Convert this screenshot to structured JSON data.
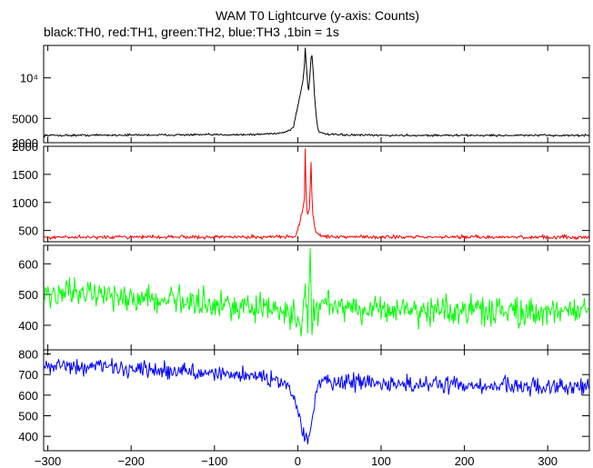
{
  "chart_data": {
    "type": "line",
    "title": "WAM T0 Lightcurve (y-axis: Counts)",
    "subtitle": "black:TH0, red:TH1, green:TH2, blue:TH3 ,1bin = 1s",
    "xlabel": "",
    "ylabel": "",
    "xlim": [
      -305,
      350
    ],
    "x_ticks": [
      -300,
      -200,
      -100,
      0,
      100,
      200,
      300
    ],
    "x_tick_labels": [
      "−300",
      "−200",
      "−100",
      "0",
      "100",
      "200",
      "300"
    ],
    "grid": false,
    "legend": "none",
    "panels": [
      {
        "name": "TH0",
        "color": "#000000",
        "ylim": [
          2000,
          14000
        ],
        "y_ticks": [
          2000,
          5000,
          10000
        ],
        "y_tick_labels": [
          "2000",
          "5000",
          "10⁴"
        ],
        "x": [
          -305,
          -50,
          -20,
          -10,
          -5,
          -2,
          0,
          2,
          4,
          6,
          8,
          9,
          10,
          11,
          12,
          13,
          14,
          15,
          16,
          17,
          18,
          19,
          20,
          22,
          24,
          26,
          30,
          40,
          60,
          100,
          350
        ],
        "y": [
          2900,
          3000,
          3200,
          3500,
          4000,
          5500,
          6500,
          7500,
          8500,
          9500,
          11500,
          13800,
          12000,
          10500,
          9000,
          8500,
          9500,
          11000,
          12500,
          12800,
          11500,
          10000,
          8000,
          5500,
          3800,
          3300,
          3100,
          3000,
          2950,
          2900,
          2900
        ]
      },
      {
        "name": "TH1",
        "color": "#ff0000",
        "ylim": [
          300,
          2000
        ],
        "y_ticks": [
          500,
          1000,
          1500,
          2000
        ],
        "y_tick_labels": [
          "500",
          "1000",
          "1500",
          "2000"
        ],
        "x": [
          -305,
          -20,
          -5,
          -2,
          0,
          2,
          4,
          6,
          8,
          9,
          10,
          11,
          12,
          14,
          15,
          16,
          17,
          18,
          19,
          20,
          22,
          25,
          30,
          40,
          100,
          350
        ],
        "y": [
          380,
          385,
          390,
          420,
          520,
          620,
          760,
          880,
          1050,
          1950,
          1200,
          860,
          780,
          900,
          1300,
          1720,
          1100,
          820,
          700,
          580,
          470,
          420,
          400,
          390,
          385,
          380
        ]
      },
      {
        "name": "TH2",
        "color": "#00ff00",
        "ylim": [
          320,
          660
        ],
        "y_ticks": [
          400,
          500,
          600
        ],
        "y_tick_labels": [
          "400",
          "500",
          "600"
        ],
        "x": [
          -305,
          -250,
          -200,
          -150,
          -100,
          -50,
          -20,
          -5,
          0,
          3,
          6,
          9,
          12,
          15,
          17,
          19,
          21,
          25,
          30,
          50,
          100,
          150,
          200,
          250,
          300,
          350
        ],
        "y": [
          505,
          500,
          495,
          480,
          470,
          460,
          450,
          430,
          410,
          380,
          430,
          560,
          390,
          650,
          380,
          460,
          440,
          460,
          470,
          460,
          450,
          445,
          450,
          445,
          445,
          450
        ]
      },
      {
        "name": "TH3",
        "color": "#0000ff",
        "ylim": [
          330,
          820
        ],
        "y_ticks": [
          400,
          500,
          600,
          700,
          800
        ],
        "y_tick_labels": [
          "400",
          "500",
          "600",
          "700",
          "800"
        ],
        "x": [
          -305,
          -250,
          -200,
          -150,
          -100,
          -50,
          -20,
          -10,
          -5,
          0,
          5,
          10,
          15,
          18,
          20,
          22,
          25,
          30,
          50,
          100,
          150,
          200,
          250,
          300,
          350
        ],
        "y": [
          745,
          740,
          730,
          718,
          705,
          690,
          670,
          640,
          590,
          520,
          450,
          390,
          410,
          500,
          560,
          610,
          650,
          660,
          660,
          655,
          650,
          648,
          645,
          642,
          640
        ]
      }
    ]
  }
}
